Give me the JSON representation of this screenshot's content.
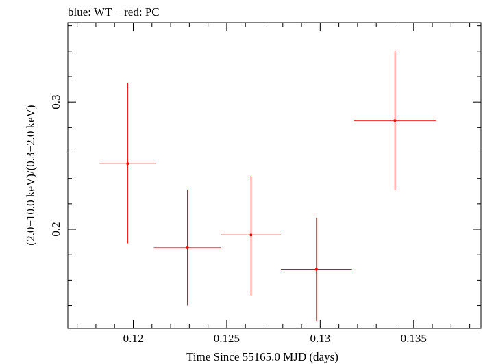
{
  "chart_data": {
    "type": "scatter",
    "title": "blue: WT − red: PC",
    "xlabel": "Time Since 55165.0 MJD (days)",
    "ylabel": "(2.0−10.0 keV)/(0.3−2.0 keV)",
    "xlim": [
      0.1165,
      0.1386
    ],
    "ylim": [
      0.122,
      0.3625
    ],
    "x_ticks": [
      {
        "value": 0.12,
        "label": "0.12"
      },
      {
        "value": 0.125,
        "label": "0.125"
      },
      {
        "value": 0.13,
        "label": "0.13"
      },
      {
        "value": 0.135,
        "label": "0.135"
      }
    ],
    "y_ticks": [
      {
        "value": 0.2,
        "label": "0.2"
      },
      {
        "value": 0.3,
        "label": "0.3"
      }
    ],
    "series": [
      {
        "color": "#ff0000",
        "points": [
          {
            "x": 0.1197,
            "y": 0.2515,
            "xerr": 0.0015,
            "yerr_low": 0.0625,
            "yerr_high": 0.0635
          },
          {
            "x": 0.1229,
            "y": 0.1855,
            "xerr": 0.0018,
            "yerr_low": 0.0455,
            "yerr_high": 0.0455
          },
          {
            "x": 0.1263,
            "y": 0.1955,
            "xerr": 0.0016,
            "yerr_low": 0.0475,
            "yerr_high": 0.0465
          },
          {
            "x": 0.1298,
            "y": 0.1685,
            "xerr": 0.0019,
            "yerr_low": 0.0405,
            "yerr_high": 0.0405
          },
          {
            "x": 0.134,
            "y": 0.2855,
            "xerr": 0.0022,
            "yerr_low": 0.0545,
            "yerr_high": 0.0545
          }
        ]
      }
    ],
    "grid": false
  }
}
